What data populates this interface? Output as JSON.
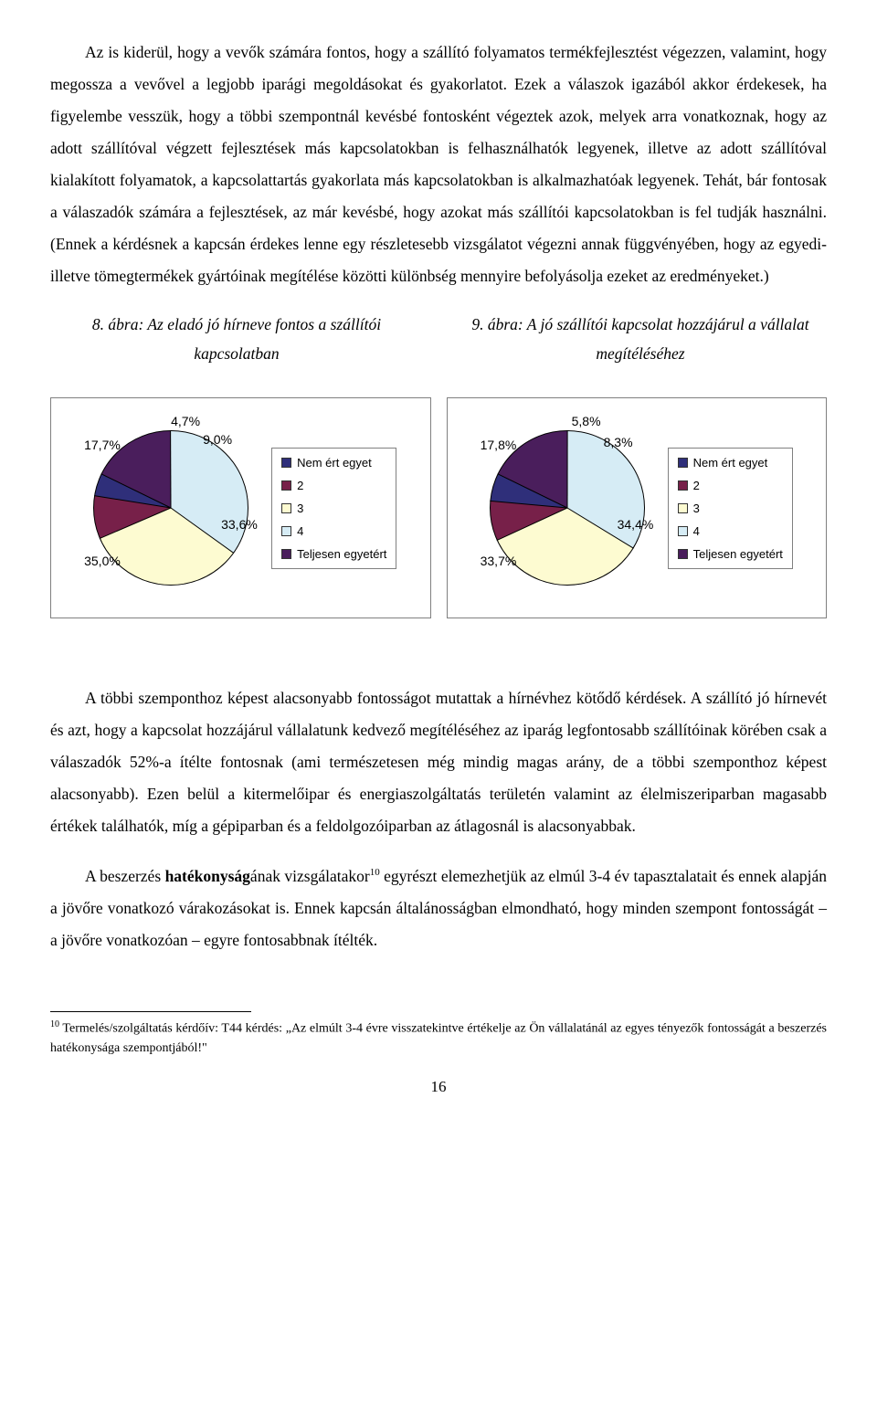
{
  "paragraphs": {
    "p1": "Az is kiderül, hogy a vevők számára fontos, hogy a szállító folyamatos termékfejlesztést végezzen, valamint, hogy megossza a vevővel a legjobb iparági megoldásokat és gyakorlatot. Ezek a válaszok igazából akkor érdekesek, ha figyelembe vesszük, hogy a többi szempontnál kevésbé fontosként végeztek azok, melyek arra vonatkoznak, hogy az adott szállítóval végzett fejlesztések más kapcsolatokban is felhasználhatók legyenek, illetve az adott szállítóval kialakított folyamatok, a kapcsolattartás gyakorlata más kapcsolatokban is alkalmazhatóak legyenek. Tehát, bár fontosak a válaszadók számára a fejlesztések, az már kevésbé, hogy azokat más szállítói kapcsolatokban is fel tudják használni. (Ennek a kérdésnek a kapcsán érdekes lenne egy részletesebb vizsgálatot végezni annak függvényében, hogy az egyedi- illetve tömegtermékek gyártóinak megítélése közötti különbség mennyire befolyásolja ezeket az eredményeket.)",
    "p2_a": "A többi szemponthoz képest alacsonyabb fontosságot mutattak a hírnévhez kötődő kérdések. A szállító jó hírnevét és azt, hogy a kapcsolat hozzájárul vállalatunk kedvező megítéléséhez az iparág legfontosabb szállítóinak körében csak a válaszadók 52%-a ítélte fontosnak (ami természetesen még mindig magas arány, de a többi szemponthoz képest alacsonyabb). Ezen belül a kitermelőipar és energiaszolgáltatás területén valamint az élelmiszeriparban magasabb értékek találhatók, míg a gépiparban és a feldolgozóiparban az átlagosnál is alacsonyabbak.",
    "p3_a": "A beszerzés ",
    "p3_b": "hatékonyság",
    "p3_c": "ának vizsgálatakor",
    "p3_d": " egyrészt elemezhetjük az elmúl 3-4 év tapasztalatait és ennek alapján a jövőre vonatkozó várakozásokat is. Ennek kapcsán általánosságban elmondható, hogy minden szempont fontosságát – a jövőre vonatkozóan – egyre fontosabbnak ítélték."
  },
  "captions": {
    "left": "8. ábra: Az eladó jó hírneve fontos a szállítói kapcsolatban",
    "right": "9. ábra: A jó szállítói kapcsolat hozzájárul a vállalat megítéléséhez"
  },
  "legend": {
    "items": [
      "Nem ért egyet",
      "2",
      "3",
      "4",
      "Teljesen egyetért"
    ],
    "colors": [
      "#2f2f7a",
      "#772049",
      "#fdfbd1",
      "#d6ecf5",
      "#4a1e5c"
    ]
  },
  "chart8": {
    "type": "pie",
    "labels": [
      "17,7%",
      "4,7%",
      "9,0%",
      "33,6%",
      "35,0%"
    ],
    "values": [
      17.7,
      35.0,
      33.6,
      9.0,
      4.7
    ],
    "colors": [
      "#4a1e5c",
      "#d6ecf5",
      "#fdfbd1",
      "#772049",
      "#2f2f7a"
    ],
    "label_fontsize": 14,
    "border_color": "#000000"
  },
  "chart9": {
    "type": "pie",
    "labels": [
      "17,8%",
      "5,8%",
      "8,3%",
      "34,4%",
      "33,7%"
    ],
    "values": [
      17.8,
      33.7,
      34.4,
      8.3,
      5.8
    ],
    "colors": [
      "#4a1e5c",
      "#d6ecf5",
      "#fdfbd1",
      "#772049",
      "#2f2f7a"
    ],
    "label_fontsize": 14,
    "border_color": "#000000"
  },
  "footnote": {
    "num": "10",
    "text": " Termelés/szolgáltatás kérdőív: T44 kérdés: „Az elmúlt 3-4 évre visszatekintve értékelje az Ön vállalatánál az egyes tényezők fontosságát a beszerzés hatékonysága szempontjából!\""
  },
  "page_number": "16"
}
